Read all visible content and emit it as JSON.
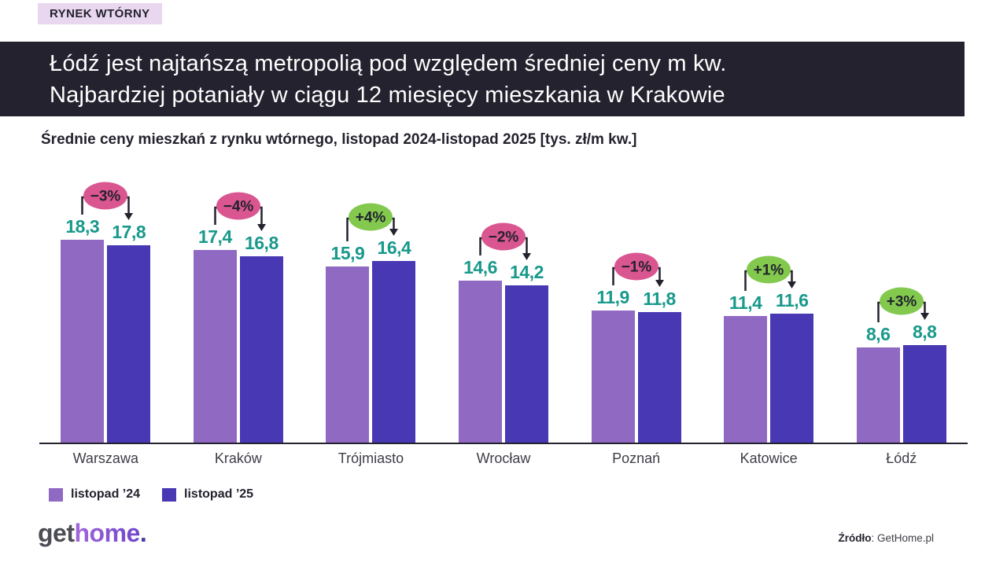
{
  "tag": {
    "label": "RYNEK WTÓRNY"
  },
  "header": {
    "line1": "Łódź jest najtańszą metropolią pod względem średniej ceny m kw.",
    "line2": "Najbardziej potaniały w ciągu 12 miesięcy mieszkania w Krakowie"
  },
  "chart_data": {
    "type": "bar",
    "title": "Średnie ceny mieszkań z rynku wtórnego, listopad 2024-listopad 2025 [tys. zł/m kw.]",
    "categories": [
      "Warszawa",
      "Kraków",
      "Trójmiasto",
      "Wrocław",
      "Poznań",
      "Katowice",
      "Łódź"
    ],
    "series": [
      {
        "name": "listopad ’24",
        "color": "#9069c3",
        "values": [
          18.3,
          17.4,
          15.9,
          14.6,
          11.9,
          11.4,
          8.6
        ]
      },
      {
        "name": "listopad ’25",
        "color": "#4838b3",
        "values": [
          17.8,
          16.8,
          16.4,
          14.2,
          11.8,
          11.6,
          8.8
        ]
      }
    ],
    "changes": [
      {
        "label": "−3%",
        "type": "decrease"
      },
      {
        "label": "−4%",
        "type": "decrease"
      },
      {
        "label": "+4%",
        "type": "increase"
      },
      {
        "label": "−2%",
        "type": "decrease"
      },
      {
        "label": "−1%",
        "type": "decrease"
      },
      {
        "label": "+1%",
        "type": "increase"
      },
      {
        "label": "+3%",
        "type": "increase"
      }
    ],
    "decrease_color": "#da5690",
    "increase_color": "#82c94e",
    "value_label_color": "#18998b",
    "connector_color": "#23222e",
    "decimal_separator": ",",
    "ylim": [
      0,
      18.3
    ],
    "grid": false,
    "legend_position": "bottom-left"
  },
  "colors": {
    "dark": "#23222e",
    "lavender": "#e8d7ee"
  },
  "footer": {
    "logo": {
      "part1": "get",
      "part2": "home",
      "part3": "."
    },
    "source_label": "Źródło",
    "source_rest": ": GetHome.pl"
  }
}
